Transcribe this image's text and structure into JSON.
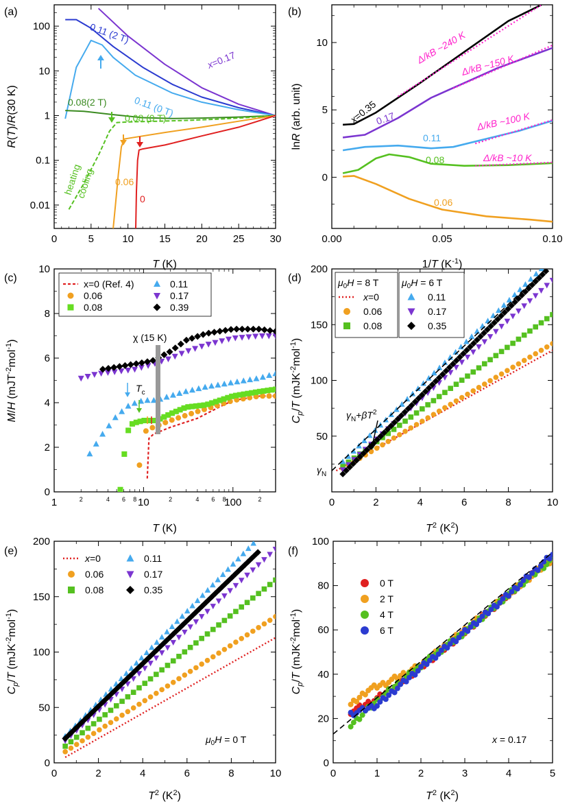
{
  "chart_data": [
    {
      "panel": "(a)",
      "type": "line",
      "xlabel": "T (K)",
      "ylabel": "R(T)/R(30 K)",
      "xlim": [
        0,
        30
      ],
      "ylim": [
        0.003,
        300
      ],
      "yscale": "log",
      "xticks": [
        "0",
        "5",
        "10",
        "15",
        "20",
        "25",
        "30"
      ],
      "yticks": [
        "0.01",
        "0.1",
        "1",
        "10",
        "100"
      ],
      "series": [
        {
          "name": "x=0.17",
          "color": "#7b35d0",
          "x": [
            6,
            10,
            15,
            20,
            25,
            30
          ],
          "y": [
            250,
            60,
            14,
            4.2,
            1.8,
            1.0
          ]
        },
        {
          "name": "0.11 (2 T)",
          "color": "#2b3bd0",
          "x": [
            1.5,
            3,
            5,
            8,
            12,
            16,
            20,
            25,
            30
          ],
          "y": [
            140,
            140,
            90,
            35,
            12,
            5,
            2.6,
            1.5,
            1.0
          ]
        },
        {
          "name": "0.11 (0 T)",
          "color": "#45aaee",
          "x": [
            1.5,
            3,
            5,
            6.5,
            8,
            11,
            16,
            20,
            25,
            30
          ],
          "y": [
            0.85,
            12,
            48,
            38,
            20,
            8,
            3.2,
            2.0,
            1.35,
            1.0
          ]
        },
        {
          "name": "0.08(2 T)",
          "color": "#3a8a20",
          "x": [
            1.5,
            4,
            8,
            12,
            16,
            20,
            25,
            30
          ],
          "y": [
            1.3,
            1.25,
            1.05,
            0.9,
            0.86,
            0.88,
            0.93,
            1.0
          ]
        },
        {
          "name": "0.08 (0 T)",
          "color": "#55c020",
          "x": [
            2,
            4,
            6,
            7.5,
            8.5,
            10,
            14,
            18,
            22,
            26,
            30
          ],
          "y": [
            0.008,
            0.03,
            0.13,
            0.45,
            0.7,
            0.72,
            0.75,
            0.78,
            0.83,
            0.9,
            1.0
          ]
        },
        {
          "name": "0.06",
          "color": "#f0a020",
          "x": [
            8,
            8.3,
            8.7,
            9.1,
            9.5,
            10.5,
            15,
            20,
            25,
            30
          ],
          "y": [
            0.003,
            0.01,
            0.05,
            0.2,
            0.3,
            0.32,
            0.42,
            0.55,
            0.75,
            1.0
          ]
        },
        {
          "name": "0",
          "color": "#e02020",
          "x": [
            11.05,
            11.15,
            11.3,
            11.5,
            12,
            15,
            20,
            25,
            30
          ],
          "y": [
            0.003,
            0.02,
            0.1,
            0.17,
            0.18,
            0.22,
            0.35,
            0.55,
            1.0
          ]
        }
      ],
      "annotations": [
        "0.11 (2 T)",
        "x=0.17",
        "0.11 (0 T)",
        "0.08(2 T)",
        "0.08 (0 T)",
        "0.06",
        "0",
        "heating",
        "cooling"
      ]
    },
    {
      "panel": "(b)",
      "type": "line",
      "xlabel": "1/T (K-1)",
      "ylabel": "ln R (arb. unit)",
      "xlim": [
        0,
        0.1
      ],
      "ylim": [
        -3.8,
        12.8
      ],
      "xticks": [
        "0.00",
        "0.05",
        "0.10"
      ],
      "yticks": [
        "0",
        "5",
        "10"
      ],
      "series": [
        {
          "name": "0.35",
          "color": "#000000",
          "x": [
            0.005,
            0.01,
            0.02,
            0.04,
            0.06,
            0.08,
            0.095
          ],
          "y": [
            3.9,
            3.95,
            4.8,
            7.0,
            9.3,
            11.6,
            12.8
          ]
        },
        {
          "name": "0.17",
          "color": "#7b35d0",
          "x": [
            0.005,
            0.015,
            0.03,
            0.045,
            0.06,
            0.075,
            0.09,
            0.1
          ],
          "y": [
            2.95,
            3.15,
            4.4,
            5.9,
            7.0,
            8.1,
            9.0,
            9.6
          ]
        },
        {
          "name": "0.11",
          "color": "#45aaee",
          "x": [
            0.005,
            0.015,
            0.03,
            0.045,
            0.055,
            0.07,
            0.085,
            0.1
          ],
          "y": [
            2.0,
            2.25,
            2.35,
            2.15,
            2.25,
            2.85,
            3.45,
            4.2
          ]
        },
        {
          "name": "0.08",
          "color": "#55c020",
          "x": [
            0.005,
            0.012,
            0.02,
            0.026,
            0.035,
            0.045,
            0.06,
            0.08,
            0.1
          ],
          "y": [
            0.3,
            0.55,
            1.4,
            1.7,
            1.5,
            1.0,
            0.85,
            0.9,
            1.05
          ]
        },
        {
          "name": "0.06",
          "color": "#f0a020",
          "x": [
            0.005,
            0.01,
            0.02,
            0.035,
            0.05,
            0.07,
            0.09,
            0.1
          ],
          "y": [
            0.05,
            0.1,
            -0.5,
            -1.6,
            -2.4,
            -2.9,
            -3.15,
            -3.3
          ]
        }
      ],
      "annotations": [
        "x=0.35",
        "0.17",
        "0.11",
        "0.08",
        "0.06",
        "Δ/kB ~240 K",
        "Δ/kB ~150 K",
        "Δ/kB ~100 K",
        "Δ/kB ~10 K"
      ]
    },
    {
      "panel": "(c)",
      "type": "scatter",
      "xlabel": "T (K)",
      "ylabel": "M/H (mJT-2mol-1)",
      "xscale": "log",
      "xlim": [
        1,
        300
      ],
      "ylim": [
        0,
        10
      ],
      "yticks": [
        "0",
        "2",
        "4",
        "6",
        "8",
        "10"
      ],
      "legend": [
        "x=0 (Ref. 4)",
        "0.06",
        "0.08",
        "0.11",
        "0.17",
        "0.39"
      ],
      "series": [
        {
          "name": "x=0 (Ref. 4)",
          "color": "#e02020",
          "x": [
            11,
            11.5,
            13,
            20,
            40,
            70,
            100,
            200,
            300
          ],
          "y": [
            0.6,
            2.4,
            2.6,
            2.9,
            3.3,
            3.8,
            4.1,
            4.3,
            4.3
          ]
        },
        {
          "name": "0.06",
          "color": "#f0a020",
          "x": [
            9,
            10,
            11,
            13,
            20,
            40,
            70,
            100,
            200,
            300
          ],
          "y": [
            1.2,
            2.6,
            2.8,
            2.9,
            3.2,
            3.6,
            3.9,
            4.1,
            4.3,
            4.3
          ]
        },
        {
          "name": "0.08",
          "color": "#66dd22",
          "x": [
            5.5,
            6,
            6.5,
            7,
            8,
            10,
            14,
            20,
            30,
            50,
            100,
            200,
            300
          ],
          "y": [
            0.1,
            1.5,
            2.5,
            3.0,
            3.1,
            3.2,
            3.2,
            3.5,
            3.8,
            3.9,
            4.3,
            4.5,
            4.6
          ]
        },
        {
          "name": "0.11",
          "color": "#45aaee",
          "x": [
            2.5,
            3.5,
            5,
            7,
            10,
            14,
            20,
            30,
            50,
            100,
            200,
            300
          ],
          "y": [
            1.7,
            2.6,
            3.4,
            3.9,
            4.1,
            4.1,
            4.3,
            4.5,
            4.7,
            4.9,
            5.1,
            5.3
          ]
        },
        {
          "name": "0.17",
          "color": "#7b35d0",
          "x": [
            2,
            3,
            5,
            8,
            12,
            20,
            30,
            50,
            100,
            200,
            300
          ],
          "y": [
            5.1,
            5.3,
            5.4,
            5.5,
            5.7,
            6.0,
            6.3,
            6.6,
            6.9,
            7.0,
            7.0
          ]
        },
        {
          "name": "0.39",
          "color": "#000000",
          "x": [
            3.5,
            5,
            7,
            10,
            13,
            20,
            30,
            50,
            100,
            200,
            300
          ],
          "y": [
            5.5,
            5.6,
            5.7,
            5.8,
            5.9,
            6.3,
            6.8,
            7.1,
            7.3,
            7.3,
            7.2
          ]
        }
      ],
      "annotations": [
        "χ (15 K)",
        "Tc"
      ]
    },
    {
      "panel": "(d)",
      "type": "scatter",
      "xlabel": "T2 (K2)",
      "ylabel": "Cp/T (mJK-2mol-1)",
      "xlim": [
        0,
        10
      ],
      "ylim": [
        0,
        200
      ],
      "xticks": [
        "0",
        "2",
        "4",
        "6",
        "8",
        "10"
      ],
      "yticks": [
        "50",
        "100",
        "150",
        "200"
      ],
      "legend_title_left": "μ0H = 8 T",
      "legend_title_right": "μ0H = 6 T",
      "series": [
        {
          "name": "x=0",
          "color": "#e02020",
          "x": [
            0.2,
            10
          ],
          "y": [
            19,
            127
          ]
        },
        {
          "name": "0.06",
          "color": "#f0a020",
          "x": [
            0.5,
            10
          ],
          "y": [
            21,
            133
          ]
        },
        {
          "name": "0.08",
          "color": "#55c020",
          "x": [
            0.5,
            10
          ],
          "y": [
            23,
            159
          ]
        },
        {
          "name": "0.11",
          "color": "#45aaee",
          "x": [
            0.5,
            9.5
          ],
          "y": [
            27,
            200
          ]
        },
        {
          "name": "0.17",
          "color": "#7b35d0",
          "x": [
            0.5,
            10
          ],
          "y": [
            20,
            190
          ]
        },
        {
          "name": "0.35",
          "color": "#000000",
          "x": [
            0.5,
            9.7
          ],
          "y": [
            16,
            198
          ]
        }
      ],
      "annotations": [
        "γN+βT2",
        "γN"
      ]
    },
    {
      "panel": "(e)",
      "type": "scatter",
      "xlabel": "T2 (K2)",
      "ylabel": "Cp/T (mJK-2mol-1)",
      "xlim": [
        0,
        10
      ],
      "ylim": [
        0,
        200
      ],
      "xticks": [
        "0",
        "2",
        "4",
        "6",
        "8",
        "10"
      ],
      "yticks": [
        "0",
        "50",
        "100",
        "150",
        "200"
      ],
      "series": [
        {
          "name": "x=0",
          "color": "#e02020",
          "x": [
            0.5,
            10
          ],
          "y": [
            5,
            113
          ]
        },
        {
          "name": "0.06",
          "color": "#f0a020",
          "x": [
            0.5,
            10
          ],
          "y": [
            10,
            132
          ]
        },
        {
          "name": "0.08",
          "color": "#55c020",
          "x": [
            0.5,
            10
          ],
          "y": [
            15,
            165
          ]
        },
        {
          "name": "0.11",
          "color": "#45aaee",
          "x": [
            0.5,
            9
          ],
          "y": [
            24,
            198
          ]
        },
        {
          "name": "0.17",
          "color": "#7b35d0",
          "x": [
            0.5,
            10
          ],
          "y": [
            20,
            193
          ]
        },
        {
          "name": "0.35",
          "color": "#000000",
          "x": [
            0.5,
            9.2
          ],
          "y": [
            22,
            190
          ]
        }
      ],
      "annotations": [
        "μ0H = 0 T"
      ]
    },
    {
      "panel": "(f)",
      "type": "scatter",
      "xlabel": "T2 (K2)",
      "ylabel": "Cp/T (mJK-2mol-1)",
      "xlim": [
        0,
        5
      ],
      "ylim": [
        0,
        100
      ],
      "xticks": [
        "0",
        "1",
        "2",
        "3",
        "4",
        "5"
      ],
      "yticks": [
        "0",
        "20",
        "40",
        "60",
        "80",
        "100"
      ],
      "legend": [
        "0 T",
        "2 T",
        "4 T",
        "6 T"
      ],
      "series": [
        {
          "name": "0 T",
          "color": "#e02020",
          "x": [
            0.4,
            1,
            2,
            3,
            4,
            5
          ],
          "y": [
            23,
            29,
            43,
            59,
            76,
            93
          ]
        },
        {
          "name": "2 T",
          "color": "#f0a020",
          "x": [
            0.4,
            0.8,
            1.2,
            2,
            3,
            4,
            5
          ],
          "y": [
            26,
            33,
            36,
            44,
            60,
            76,
            92
          ]
        },
        {
          "name": "4 T",
          "color": "#55c020",
          "x": [
            0.4,
            1,
            2,
            3,
            4,
            5
          ],
          "y": [
            17,
            28,
            44,
            59,
            76,
            92
          ]
        },
        {
          "name": "6 T",
          "color": "#2b3bd0",
          "x": [
            0.4,
            1,
            2,
            3,
            4,
            5
          ],
          "y": [
            22,
            26,
            43,
            59,
            76,
            94
          ]
        }
      ],
      "fit": {
        "x": [
          0,
          5
        ],
        "y": [
          13,
          95
        ]
      },
      "annotations": [
        "x = 0.17"
      ]
    }
  ]
}
